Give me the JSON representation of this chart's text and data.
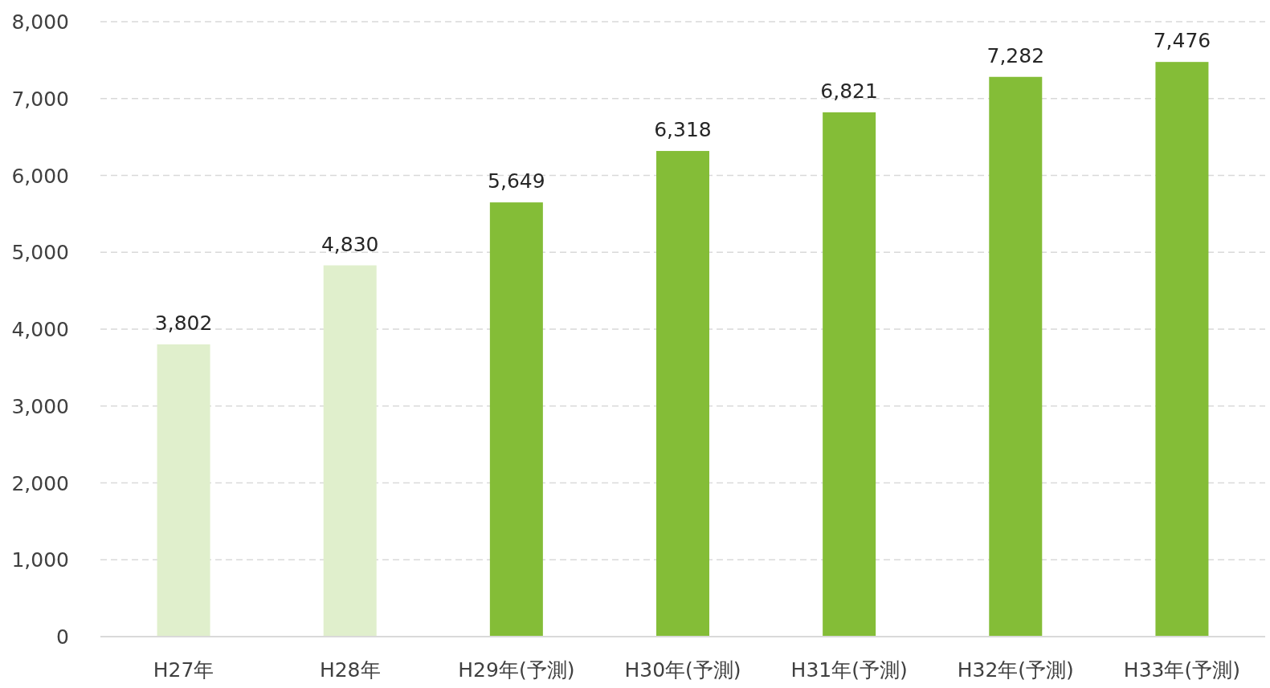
{
  "chart_data": {
    "type": "bar",
    "categories": [
      "H27年",
      "H28年",
      "H29年(予測)",
      "H30年(予測)",
      "H31年(予測)",
      "H32年(予測)",
      "H33年(予測)"
    ],
    "values": [
      3802,
      4830,
      5649,
      6318,
      6821,
      7282,
      7476
    ],
    "value_labels": [
      "3,802",
      "4,830",
      "5,649",
      "6,318",
      "6,821",
      "7,282",
      "7,476"
    ],
    "colors": [
      "#e0efcc",
      "#e0efcc",
      "#84bd37",
      "#84bd37",
      "#84bd37",
      "#84bd37",
      "#84bd37"
    ],
    "ylim": [
      0,
      8000
    ],
    "yticks": [
      {
        "value": 0,
        "label": "0"
      },
      {
        "value": 1000,
        "label": "1,000"
      },
      {
        "value": 2000,
        "label": "2,000"
      },
      {
        "value": 3000,
        "label": "3,000"
      },
      {
        "value": 4000,
        "label": "4,000"
      },
      {
        "value": 5000,
        "label": "5,000"
      },
      {
        "value": 6000,
        "label": "6,000"
      },
      {
        "value": 7000,
        "label": "7,000"
      },
      {
        "value": 8000,
        "label": "8,000"
      }
    ],
    "grid": "y"
  }
}
